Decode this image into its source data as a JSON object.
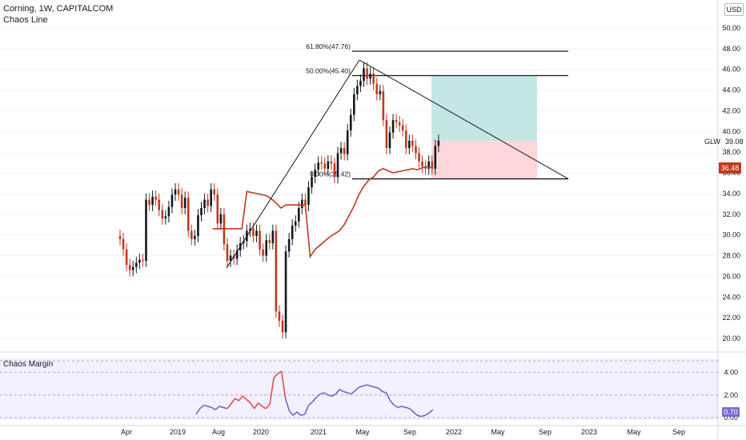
{
  "header": {
    "title": "Corning, 1W, CAPITALCOM",
    "indicator": "Chaos Line",
    "currency": "USD"
  },
  "labels": {
    "symbol": "GLW",
    "symbol_value": "39.08",
    "last_price": "36.48",
    "sub_title": "Chaos Margin",
    "sub_value": "0.70"
  },
  "colors": {
    "up_candle": "#131722",
    "down_candle": "#c0391b",
    "chaos_line": "#c0391b",
    "profit_zone": "#b2dfdb",
    "loss_zone": "#ffcdd2",
    "margin_up": "#e53935",
    "margin_down": "#5e55c9",
    "sub_bg": "#f3f0ff"
  },
  "chart_data": [
    {
      "type": "candlestick",
      "price_axis_ticks": [
        "50.00",
        "48.00",
        "46.00",
        "44.00",
        "42.00",
        "40.00",
        "38.00",
        "36.00",
        "34.00",
        "32.00",
        "30.00",
        "28.00",
        "26.00",
        "24.00",
        "22.00",
        "20.00"
      ],
      "time_axis_ticks": [
        "Apr",
        "2019",
        "Aug",
        "2020",
        "2021",
        "May",
        "Sep",
        "2022",
        "May",
        "Sep",
        "2023",
        "May",
        "Sep"
      ],
      "ylim": [
        19,
        51
      ],
      "fib_levels": [
        {
          "label": "61.80%(47.76)",
          "value": 47.76
        },
        {
          "label": "50.00%(45.40)",
          "value": 45.4
        },
        {
          "label": "0.00%(35.42)",
          "value": 35.42
        }
      ],
      "trade_zone": {
        "entry": 39.08,
        "target": 45.4,
        "stop": 35.42
      },
      "closes": [
        29.6,
        28.6,
        27.1,
        26.6,
        26.9,
        27.3,
        27.6,
        27.5,
        33.4,
        32.9,
        33.7,
        33.4,
        32.4,
        31.6,
        31.8,
        32.7,
        33.9,
        34.4,
        33.9,
        32.6,
        33.6,
        30.4,
        29.6,
        29.9,
        31.9,
        32.6,
        33.4,
        32.8,
        34.4,
        33.9,
        31.1,
        32.0,
        29.1,
        27.5,
        28.0,
        27.7,
        28.5,
        29.2,
        29.4,
        30.4,
        30.6,
        29.9,
        30.4,
        28.6,
        28.0,
        29.5,
        29.2,
        30.4,
        22.6,
        21.7,
        20.6,
        28.4,
        29.6,
        30.9,
        31.3,
        32.6,
        33.4,
        32.9,
        34.6,
        35.6,
        36.3,
        37.0,
        36.9,
        36.4,
        37.1,
        36.9,
        35.6,
        37.9,
        38.4,
        37.8,
        40.1,
        41.6,
        43.6,
        44.4,
        44.9,
        46.1,
        45.1,
        45.6,
        44.6,
        43.6,
        43.9,
        41.1,
        38.4,
        39.9,
        41.1,
        40.9,
        40.6,
        40.1,
        38.4,
        39.1,
        38.6,
        37.9,
        37.1,
        36.6,
        36.4,
        37.1,
        36.4,
        38.6,
        39.1
      ],
      "chaos_line": [
        null,
        null,
        null,
        null,
        null,
        null,
        null,
        null,
        null,
        null,
        null,
        null,
        null,
        null,
        null,
        null,
        null,
        null,
        null,
        30.6,
        30.6,
        30.6,
        30.6,
        30.6,
        30.6,
        30.6,
        34.2,
        34.1,
        34.0,
        33.9,
        33.8,
        33.5,
        33.1,
        32.6,
        32.9,
        32.9,
        32.9,
        32.9,
        32.9,
        27.9,
        28.6,
        29.0,
        29.4,
        29.8,
        30.1,
        30.4,
        31.0,
        31.9,
        32.8,
        33.9,
        34.7,
        35.3,
        35.6,
        36.2,
        36.4,
        36.2,
        36.0,
        36.1,
        36.2,
        36.3,
        36.4,
        36.3,
        36.5,
        36.6,
        36.5
      ],
      "chaos_margin": [
        0.3,
        0.8,
        1.1,
        1.0,
        0.9,
        0.7,
        1.0,
        0.9,
        0.8,
        1.2,
        1.7,
        1.5,
        1.9,
        1.6,
        1.3,
        0.8,
        1.3,
        1.0,
        0.8,
        1.2,
        3.5,
        3.9,
        4.1,
        1.7,
        0.6,
        0.2,
        0.5,
        0.2,
        0.3,
        1.1,
        1.4,
        1.8,
        2.1,
        2.2,
        2.0,
        1.9,
        2.1,
        2.5,
        2.3,
        2.2,
        2.1,
        2.4,
        2.7,
        2.8,
        2.9,
        2.8,
        2.7,
        2.6,
        2.3,
        2.2,
        1.5,
        1.1,
        0.9,
        1.0,
        0.9,
        0.8,
        0.5,
        0.2,
        0.1,
        0.2,
        0.4,
        0.7
      ],
      "sub_axis_ticks": [
        "4.00",
        "2.00",
        "0.00"
      ],
      "sub_ylim": [
        -0.3,
        5.0
      ]
    }
  ]
}
